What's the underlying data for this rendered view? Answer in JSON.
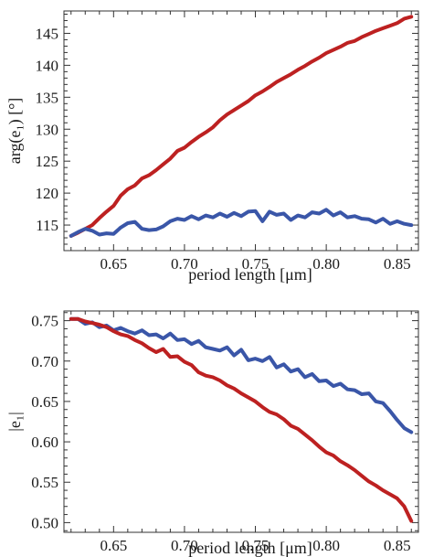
{
  "chart_data": [
    {
      "type": "line",
      "xlabel": "period length [μm]",
      "ylabel": "arg(e₁) [°]",
      "xlim": [
        0.615,
        0.865
      ],
      "ylim": [
        111,
        148.5
      ],
      "xticks": [
        0.65,
        0.7,
        0.75,
        0.8,
        0.85
      ],
      "xtick_labels": [
        "0.65",
        "0.70",
        "0.75",
        "0.80",
        "0.85"
      ],
      "yticks": [
        115,
        120,
        125,
        130,
        135,
        140,
        145
      ],
      "ytick_labels": [
        "115",
        "120",
        "125",
        "130",
        "135",
        "140",
        "145"
      ],
      "grid": false,
      "series": [
        {
          "color": "#bd2121",
          "x": [
            0.62,
            0.625,
            0.63,
            0.635,
            0.64,
            0.645,
            0.65,
            0.655,
            0.66,
            0.665,
            0.67,
            0.675,
            0.68,
            0.685,
            0.69,
            0.695,
            0.7,
            0.705,
            0.71,
            0.715,
            0.72,
            0.725,
            0.73,
            0.735,
            0.74,
            0.745,
            0.75,
            0.755,
            0.76,
            0.765,
            0.77,
            0.775,
            0.78,
            0.785,
            0.79,
            0.795,
            0.8,
            0.805,
            0.81,
            0.815,
            0.82,
            0.825,
            0.83,
            0.835,
            0.84,
            0.845,
            0.85,
            0.855,
            0.86
          ],
          "y": [
            113.3,
            113.8,
            114.4,
            115.0,
            116.1,
            117.1,
            118.0,
            119.6,
            120.6,
            121.2,
            122.3,
            122.8,
            123.6,
            124.5,
            125.4,
            126.6,
            127.1,
            128.0,
            128.8,
            129.5,
            130.3,
            131.4,
            132.3,
            133.0,
            133.7,
            134.4,
            135.3,
            135.9,
            136.6,
            137.4,
            138.0,
            138.6,
            139.3,
            139.9,
            140.6,
            141.2,
            141.9,
            142.4,
            142.9,
            143.5,
            143.8,
            144.4,
            144.9,
            145.4,
            145.8,
            146.2,
            146.6,
            147.3,
            147.6
          ]
        },
        {
          "color": "#3a56a8",
          "x": [
            0.62,
            0.625,
            0.63,
            0.635,
            0.64,
            0.645,
            0.65,
            0.655,
            0.66,
            0.665,
            0.67,
            0.675,
            0.68,
            0.685,
            0.69,
            0.695,
            0.7,
            0.705,
            0.71,
            0.715,
            0.72,
            0.725,
            0.73,
            0.735,
            0.74,
            0.745,
            0.75,
            0.755,
            0.76,
            0.765,
            0.77,
            0.775,
            0.78,
            0.785,
            0.79,
            0.795,
            0.8,
            0.805,
            0.81,
            0.815,
            0.82,
            0.825,
            0.83,
            0.835,
            0.84,
            0.845,
            0.85,
            0.855,
            0.86
          ],
          "y": [
            113.3,
            113.9,
            114.4,
            114.1,
            113.5,
            113.7,
            113.6,
            114.6,
            115.3,
            115.5,
            114.4,
            114.2,
            114.3,
            114.8,
            115.6,
            116.0,
            115.8,
            116.4,
            115.9,
            116.5,
            116.2,
            116.8,
            116.3,
            116.9,
            116.4,
            117.1,
            117.2,
            115.6,
            117.1,
            116.6,
            116.8,
            115.8,
            116.5,
            116.2,
            117.0,
            116.8,
            117.4,
            116.5,
            117.0,
            116.2,
            116.4,
            116.0,
            115.9,
            115.4,
            116.0,
            115.2,
            115.6,
            115.2,
            115.0
          ]
        }
      ]
    },
    {
      "type": "line",
      "xlabel": "period length [μm]",
      "ylabel": "|e₁|",
      "xlim": [
        0.615,
        0.865
      ],
      "ylim": [
        0.488,
        0.762
      ],
      "xticks": [
        0.65,
        0.7,
        0.75,
        0.8,
        0.85
      ],
      "xtick_labels": [
        "0.65",
        "0.70",
        "0.75",
        "0.80",
        "0.85"
      ],
      "yticks": [
        0.5,
        0.55,
        0.6,
        0.65,
        0.7,
        0.75
      ],
      "ytick_labels": [
        "0.50",
        "0.55",
        "0.60",
        "0.65",
        "0.70",
        "0.75"
      ],
      "grid": false,
      "series": [
        {
          "color": "#3a56a8",
          "x": [
            0.62,
            0.625,
            0.63,
            0.635,
            0.64,
            0.645,
            0.65,
            0.655,
            0.66,
            0.665,
            0.67,
            0.675,
            0.68,
            0.685,
            0.69,
            0.695,
            0.7,
            0.705,
            0.71,
            0.715,
            0.72,
            0.725,
            0.73,
            0.735,
            0.74,
            0.745,
            0.75,
            0.755,
            0.76,
            0.765,
            0.77,
            0.775,
            0.78,
            0.785,
            0.79,
            0.795,
            0.8,
            0.805,
            0.81,
            0.815,
            0.82,
            0.825,
            0.83,
            0.835,
            0.84,
            0.845,
            0.85,
            0.855,
            0.86
          ],
          "y": [
            0.752,
            0.752,
            0.746,
            0.748,
            0.742,
            0.744,
            0.738,
            0.741,
            0.737,
            0.734,
            0.738,
            0.732,
            0.733,
            0.728,
            0.734,
            0.726,
            0.727,
            0.721,
            0.725,
            0.717,
            0.715,
            0.713,
            0.717,
            0.707,
            0.714,
            0.701,
            0.703,
            0.7,
            0.705,
            0.692,
            0.696,
            0.687,
            0.69,
            0.68,
            0.684,
            0.675,
            0.676,
            0.669,
            0.672,
            0.665,
            0.664,
            0.659,
            0.66,
            0.65,
            0.648,
            0.638,
            0.627,
            0.617,
            0.612
          ]
        },
        {
          "color": "#bd2121",
          "x": [
            0.62,
            0.625,
            0.63,
            0.635,
            0.64,
            0.645,
            0.65,
            0.655,
            0.66,
            0.665,
            0.67,
            0.675,
            0.68,
            0.685,
            0.69,
            0.695,
            0.7,
            0.705,
            0.71,
            0.715,
            0.72,
            0.725,
            0.73,
            0.735,
            0.74,
            0.745,
            0.75,
            0.755,
            0.76,
            0.765,
            0.77,
            0.775,
            0.78,
            0.785,
            0.79,
            0.795,
            0.8,
            0.805,
            0.81,
            0.815,
            0.82,
            0.825,
            0.83,
            0.835,
            0.84,
            0.845,
            0.85,
            0.855,
            0.86
          ],
          "y": [
            0.752,
            0.752,
            0.749,
            0.747,
            0.745,
            0.742,
            0.737,
            0.733,
            0.731,
            0.726,
            0.722,
            0.716,
            0.711,
            0.715,
            0.705,
            0.706,
            0.699,
            0.695,
            0.686,
            0.682,
            0.68,
            0.676,
            0.67,
            0.666,
            0.66,
            0.655,
            0.65,
            0.643,
            0.637,
            0.634,
            0.628,
            0.62,
            0.616,
            0.609,
            0.602,
            0.594,
            0.587,
            0.583,
            0.576,
            0.571,
            0.565,
            0.558,
            0.551,
            0.546,
            0.54,
            0.535,
            0.53,
            0.52,
            0.502
          ]
        }
      ]
    }
  ]
}
